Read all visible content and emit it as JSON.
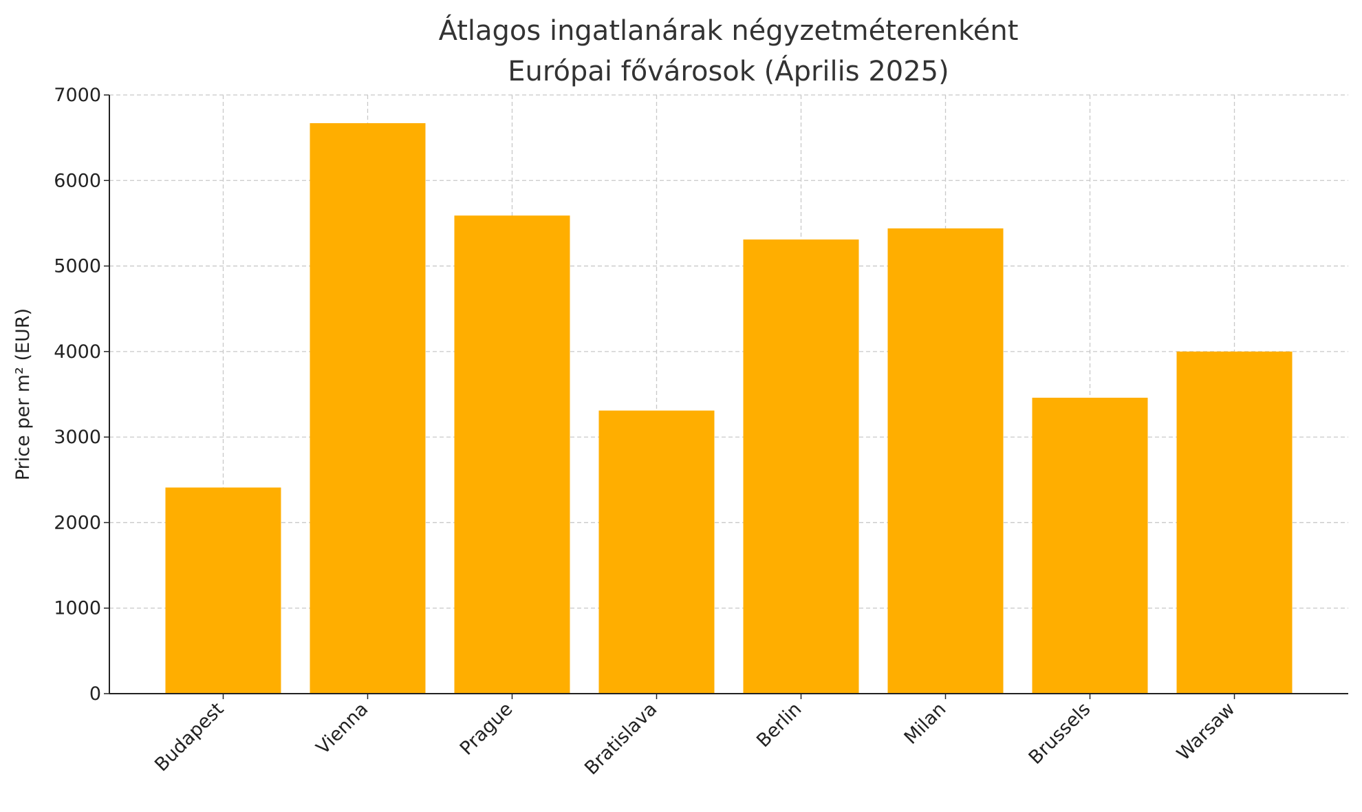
{
  "chart_data": {
    "type": "bar",
    "title": "Átlagos ingatlanárak négyzetméterenként",
    "subtitle": "Európai fővárosok (Április 2025)",
    "y_label": "Price per m² (EUR)",
    "categories": [
      "Budapest",
      "Vienna",
      "Prague",
      "Bratislava",
      "Berlin",
      "Milan",
      "Brussels",
      "Warsaw"
    ],
    "values": [
      2410,
      6670,
      5590,
      3310,
      5310,
      5440,
      3460,
      4000
    ],
    "color": "#ffae00",
    "ylim": [
      0,
      7000
    ],
    "yticks": [
      0,
      1000,
      2000,
      3000,
      4000,
      5000,
      6000,
      7000
    ],
    "grid": true
  }
}
